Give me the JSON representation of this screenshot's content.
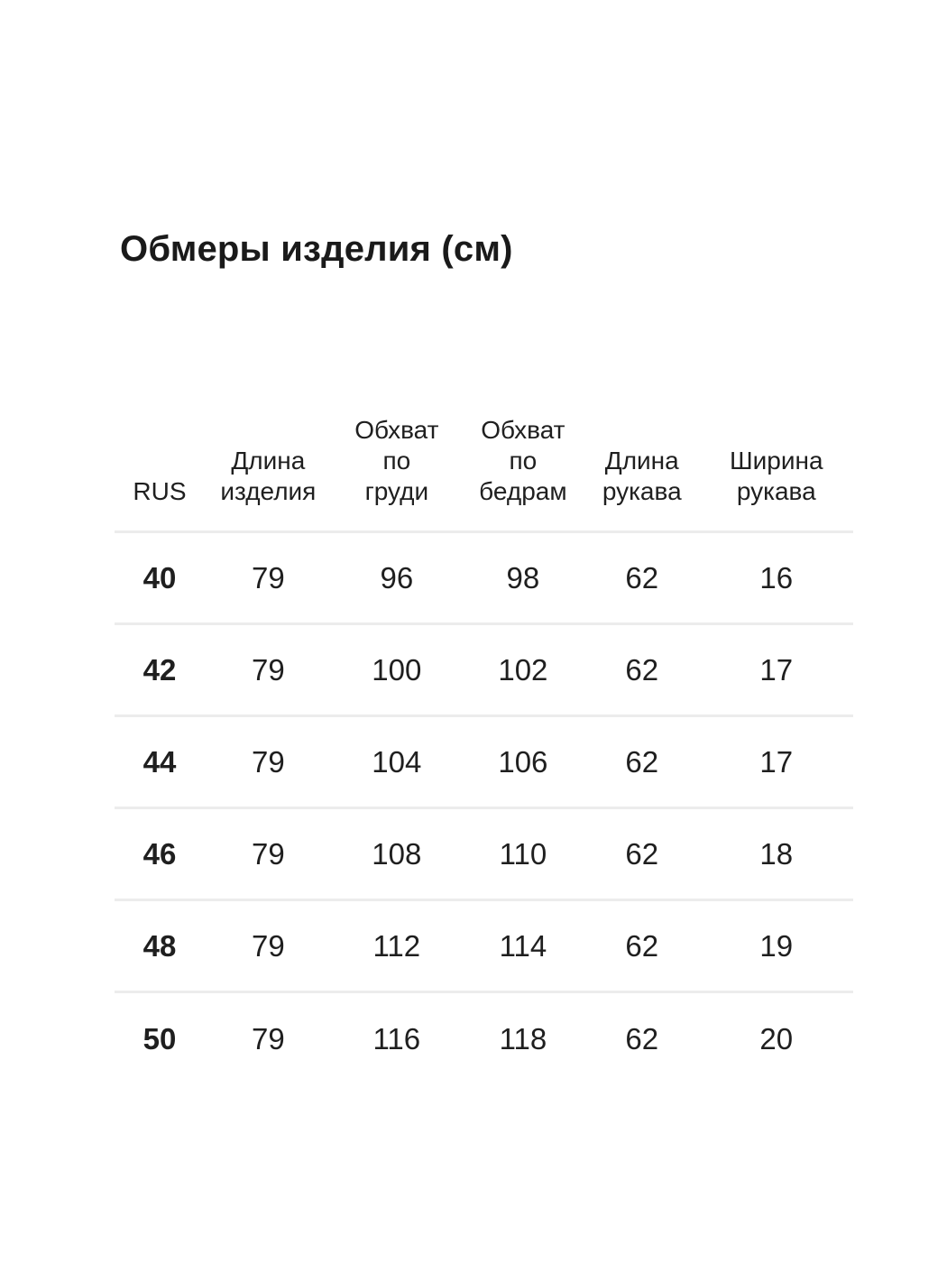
{
  "page": {
    "title": "Обмеры изделия (см)"
  },
  "size_table": {
    "columns": [
      {
        "id": "rus",
        "lines": [
          "RUS"
        ]
      },
      {
        "id": "item-length",
        "lines": [
          "Длина",
          "изделия"
        ]
      },
      {
        "id": "chest-girth",
        "lines": [
          "Обхват",
          "по",
          "груди"
        ]
      },
      {
        "id": "hip-girth",
        "lines": [
          "Обхват",
          "по",
          "бедрам"
        ]
      },
      {
        "id": "sleeve-length",
        "lines": [
          "Длина",
          "рукава"
        ]
      },
      {
        "id": "sleeve-width",
        "lines": [
          "Ширина",
          "рукава"
        ]
      }
    ],
    "rows": [
      {
        "size": "40",
        "values": [
          "79",
          "96",
          "98",
          "62",
          "16"
        ]
      },
      {
        "size": "42",
        "values": [
          "79",
          "100",
          "102",
          "62",
          "17"
        ]
      },
      {
        "size": "44",
        "values": [
          "79",
          "104",
          "106",
          "62",
          "17"
        ]
      },
      {
        "size": "46",
        "values": [
          "79",
          "108",
          "110",
          "62",
          "18"
        ]
      },
      {
        "size": "48",
        "values": [
          "79",
          "112",
          "114",
          "62",
          "19"
        ]
      },
      {
        "size": "50",
        "values": [
          "79",
          "116",
          "118",
          "62",
          "20"
        ]
      }
    ]
  },
  "colors": {
    "background": "#ffffff",
    "text": "#1f1f1f",
    "title_text": "#1a1a1a",
    "divider": "#ececec"
  }
}
